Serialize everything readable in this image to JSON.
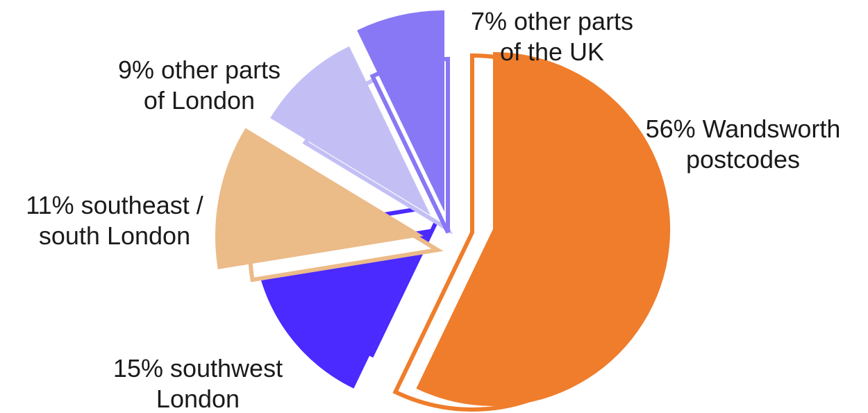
{
  "chart_data": {
    "type": "pie",
    "title": "",
    "slices": [
      {
        "label_lines": [
          "56% Wandsworth",
          "postcodes"
        ],
        "value": 56,
        "color": "#ef7d2b"
      },
      {
        "label_lines": [
          "15% southwest",
          "London"
        ],
        "value": 15,
        "color": "#4a2aff"
      },
      {
        "label_lines": [
          "11% southeast /",
          "south London"
        ],
        "value": 11,
        "color": "#ebbb88"
      },
      {
        "label_lines": [
          "9% other parts",
          "of London"
        ],
        "value": 9,
        "color": "#c3bff5"
      },
      {
        "label_lines": [
          "7% other parts",
          "of the UK"
        ],
        "value": 7,
        "color": "#8878f5"
      }
    ],
    "legend": "none",
    "grid": false
  }
}
